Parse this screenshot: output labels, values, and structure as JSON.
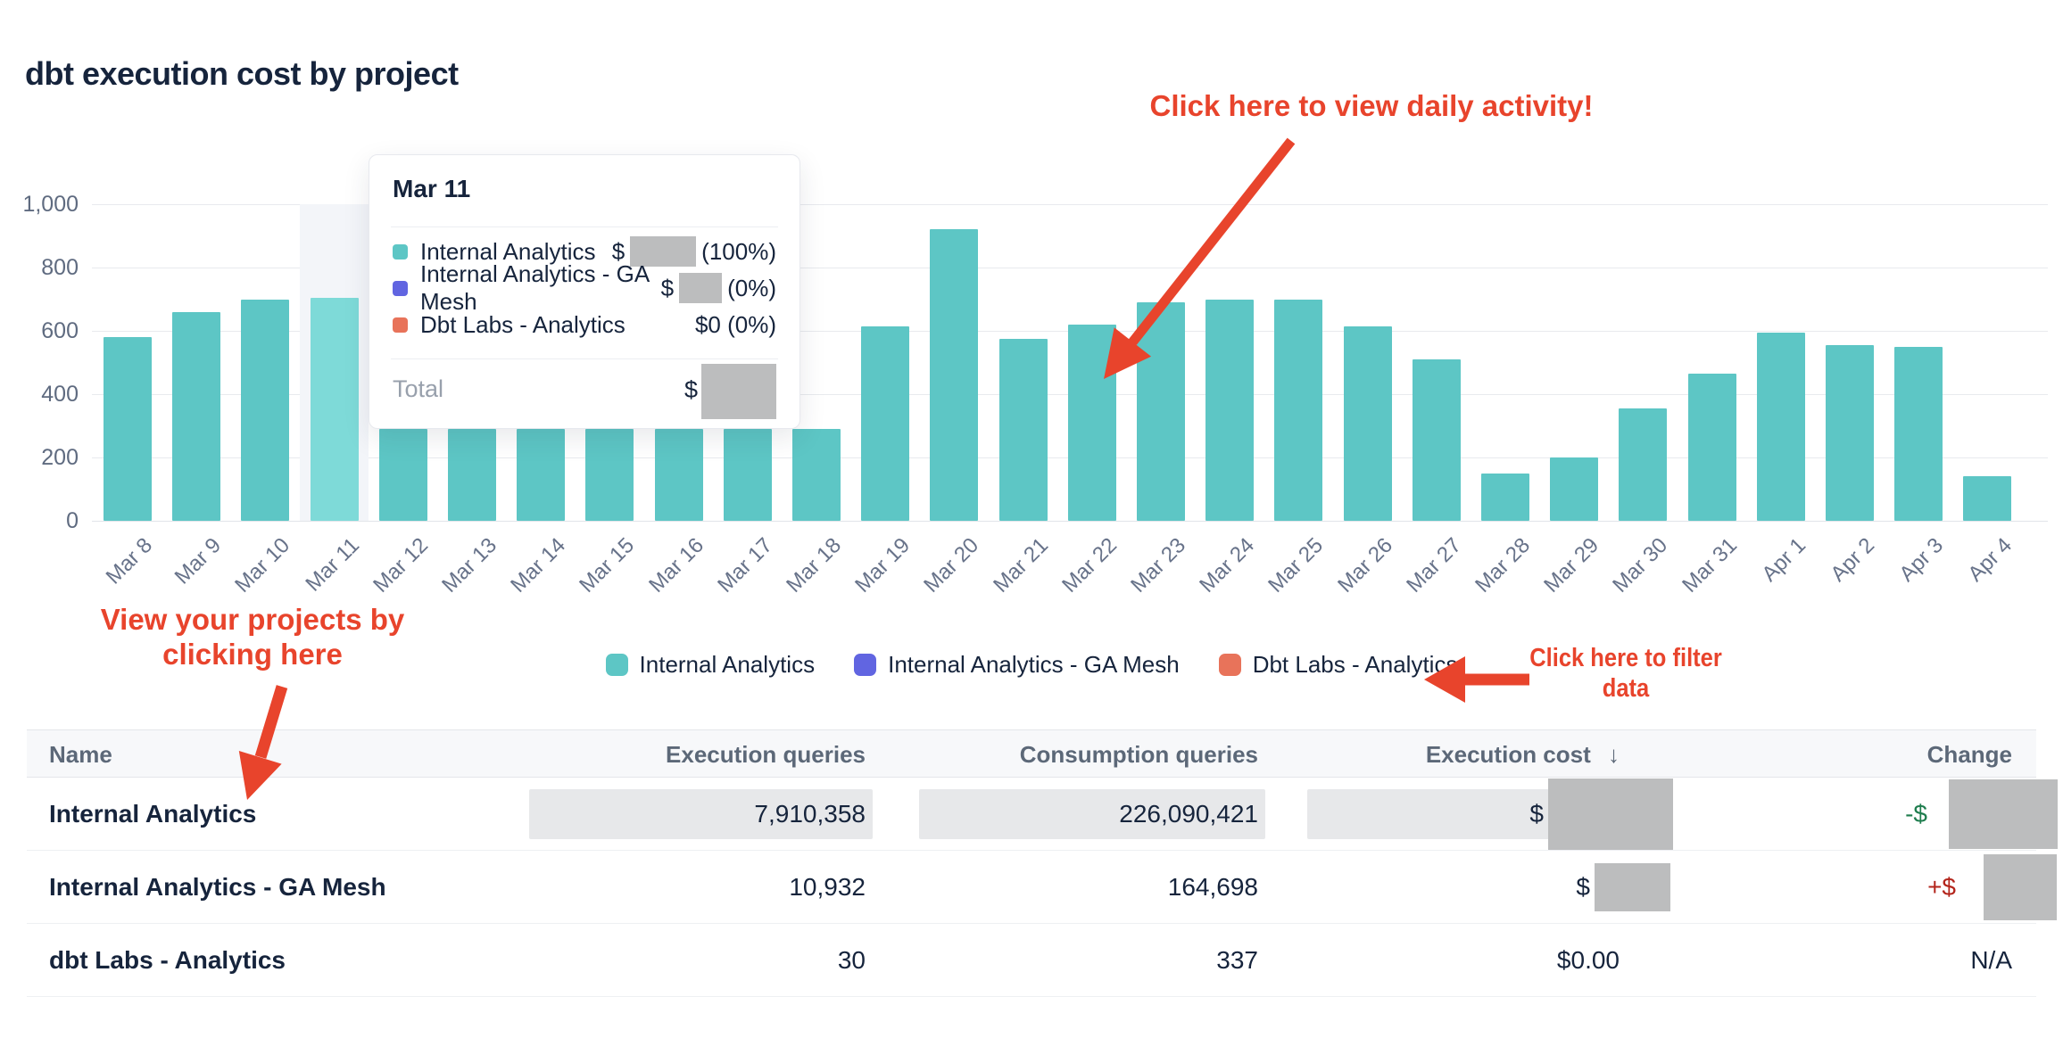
{
  "page": {
    "title": "dbt execution cost by project"
  },
  "chart_data": {
    "type": "bar",
    "title": "dbt execution cost by project",
    "x": [
      "Mar 8",
      "Mar 9",
      "Mar 10",
      "Mar 11",
      "Mar 12",
      "Mar 13",
      "Mar 14",
      "Mar 15",
      "Mar 16",
      "Mar 17",
      "Mar 18",
      "Mar 19",
      "Mar 20",
      "Mar 21",
      "Mar 22",
      "Mar 23",
      "Mar 24",
      "Mar 25",
      "Mar 26",
      "Mar 27",
      "Mar 28",
      "Mar 29",
      "Mar 30",
      "Mar 31",
      "Apr 1",
      "Apr 2",
      "Apr 3",
      "Apr 4"
    ],
    "series": [
      {
        "name": "Internal Analytics",
        "values": [
          580,
          660,
          700,
          705,
          290,
          290,
          290,
          290,
          290,
          290,
          290,
          615,
          920,
          575,
          620,
          690,
          700,
          700,
          615,
          510,
          150,
          200,
          355,
          465,
          595,
          555,
          550,
          140
        ]
      }
    ],
    "ylim": [
      0,
      1000
    ],
    "yticks": [
      "0",
      "200",
      "400",
      "600",
      "800",
      "1,000"
    ],
    "grid": true,
    "legend_position": "bottom",
    "highlighted_bar": "Mar 11",
    "bar_color": "#5dc6c5",
    "highlight_color": "#7edad8"
  },
  "tooltip": {
    "date": "Mar 11",
    "rows": [
      {
        "label": "Internal Analytics",
        "color": "#5dc6c5",
        "value_prefix": "$",
        "percent": "(100%)"
      },
      {
        "label": "Internal Analytics - GA Mesh",
        "color": "#6165e1",
        "value_prefix": "$",
        "percent": "(0%)"
      },
      {
        "label": "Dbt Labs - Analytics",
        "color": "#e8735a",
        "value": "$0 (0%)"
      }
    ],
    "total_label": "Total",
    "total_prefix": "$"
  },
  "legend": {
    "items": [
      {
        "label": "Internal Analytics",
        "color": "#5dc6c5"
      },
      {
        "label": "Internal Analytics - GA Mesh",
        "color": "#6165e1"
      },
      {
        "label": "Dbt Labs - Analytics",
        "color": "#e8735a"
      }
    ]
  },
  "annotations": {
    "color": "#e8442c",
    "daily_activity": "Click here to view daily activity!",
    "projects_line1": "View your projects by",
    "projects_line2": "clicking here",
    "filter_line1": "Click here to filter",
    "filter_line2": "data"
  },
  "table": {
    "columns": {
      "name": "Name",
      "execution_queries": "Execution queries",
      "consumption_queries": "Consumption queries",
      "execution_cost": "Execution cost",
      "change": "Change"
    },
    "sort_icon": "↓",
    "rows": [
      {
        "name": "Internal Analytics",
        "execution_queries": "7,910,358",
        "consumption_queries": "226,090,421",
        "execution_cost_prefix": "$",
        "change_prefix": "-$"
      },
      {
        "name": "Internal Analytics - GA Mesh",
        "execution_queries": "10,932",
        "consumption_queries": "164,698",
        "execution_cost_prefix": "$",
        "change_prefix": "+$"
      },
      {
        "name": "dbt Labs - Analytics",
        "execution_queries": "30",
        "consumption_queries": "337",
        "execution_cost": "$0.00",
        "change": "N/A"
      }
    ]
  }
}
